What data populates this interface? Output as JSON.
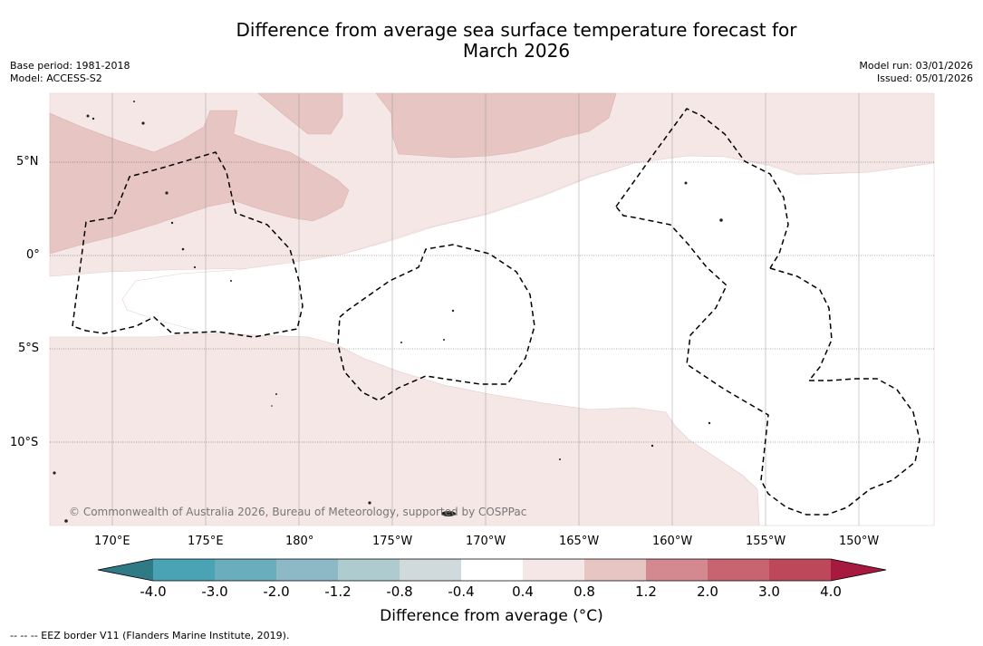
{
  "title_line1": "Difference from average sea surface temperature forecast for",
  "title_line2": "March 2026",
  "base_period": "Base period: 1981-2018",
  "model": "Model: ACCESS-S2",
  "model_run": "Model run: 03/01/2026",
  "issued": "Issued: 05/01/2026",
  "copyright": "© Commonwealth of Australia 2026, Bureau of Meteorology, supported by COSPPac",
  "lat_labels": [
    "5°N",
    "0°",
    "5°S",
    "10°S"
  ],
  "lon_labels": [
    "170°E",
    "175°E",
    "180°",
    "175°W",
    "170°W",
    "165°W",
    "160°W",
    "155°W",
    "150°W"
  ],
  "colorbar": {
    "ticks": [
      "-4.0",
      "-3.0",
      "-2.0",
      "-1.2",
      "-0.8",
      "-0.4",
      "0.4",
      "0.8",
      "1.2",
      "2.0",
      "3.0",
      "4.0"
    ],
    "colors": [
      "#2f7a85",
      "#4aa3b5",
      "#6aadbd",
      "#8cb9c5",
      "#aecbcf",
      "#d0d9db",
      "#ffffff",
      "#f5e7e6",
      "#e6c5c2",
      "#d4888f",
      "#c86470",
      "#bc4859",
      "#a7193e"
    ],
    "title": "Difference from average (°C)"
  },
  "footnote": "-- -- -- EEZ border V11 (Flanders Marine Institute, 2019).",
  "legend": {
    "weak_warm": "#f5e7e6",
    "moderate_warm": "#e6c5c2"
  }
}
